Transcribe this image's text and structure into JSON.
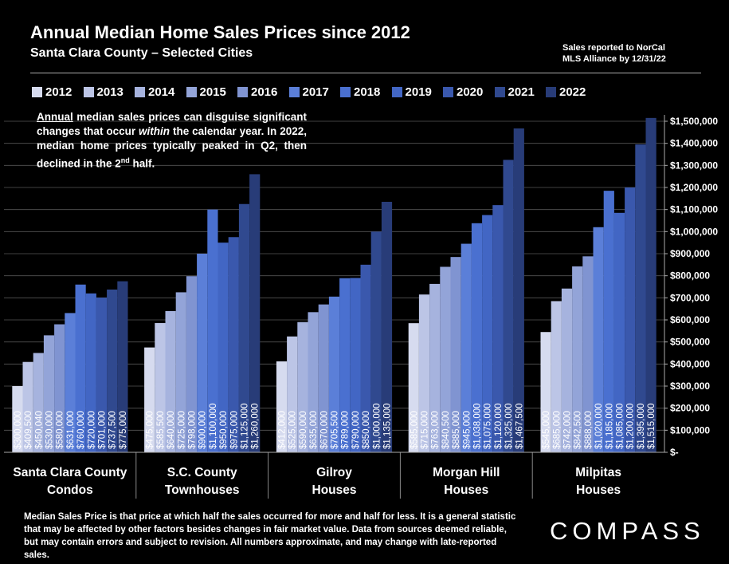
{
  "header": {
    "title": "Annual Median Home Sales Prices since 2012",
    "subtitle": "Santa Clara County – Selected Cities",
    "note_line1": "Sales reported to NorCal",
    "note_line2": "MLS Alliance by 12/31/22"
  },
  "annotation": {
    "word": "Annual",
    "text_a": " median sales prices can disguise significant changes that occur ",
    "em": "within",
    "text_b": " the calendar year. In 2022, median home prices typically peaked in Q2, then declined in the 2",
    "sup": "nd",
    "text_c": " half."
  },
  "footer": {
    "text": "Median Sales Price is that price at which half the sales occurred for more and half for less. It is a general statistic that may be affected by other factors besides changes in fair market value. Data from sources deemed reliable, but may contain errors and subject to revision.  All numbers approximate, and may change with late-reported sales."
  },
  "logo": {
    "text": "COMPASS"
  },
  "chart_data": {
    "type": "bar",
    "years": [
      "2012",
      "2013",
      "2014",
      "2015",
      "2016",
      "2017",
      "2018",
      "2019",
      "2020",
      "2021",
      "2022"
    ],
    "colors": [
      "#d6dbef",
      "#bcc5e6",
      "#a6b3de",
      "#93a4d8",
      "#8094d1",
      "#5b7fd8",
      "#4a70d0",
      "#4266c4",
      "#3a58ad",
      "#30498f",
      "#283c78"
    ],
    "categories": [
      {
        "line1": "Santa Clara County",
        "line2": "Condos"
      },
      {
        "line1": "S.C. County",
        "line2": "Townhouses"
      },
      {
        "line1": "Gilroy",
        "line2": "Houses"
      },
      {
        "line1": "Morgan Hill",
        "line2": "Houses"
      },
      {
        "line1": "Milpitas",
        "line2": "Houses"
      }
    ],
    "values": [
      [
        300000,
        409500,
        450040,
        530000,
        580000,
        631000,
        760000,
        720000,
        701000,
        737500,
        775000
      ],
      [
        475000,
        585500,
        640000,
        725000,
        798000,
        900000,
        1100000,
        950000,
        975000,
        1125000,
        1260000
      ],
      [
        412000,
        525000,
        590000,
        635000,
        670000,
        705500,
        789000,
        790000,
        850000,
        1000000,
        1135000
      ],
      [
        585000,
        715000,
        763000,
        840500,
        885000,
        945000,
        1038000,
        1075000,
        1120000,
        1325000,
        1467500
      ],
      [
        545000,
        685000,
        742000,
        842500,
        888000,
        1020000,
        1185000,
        1085000,
        1200000,
        1395000,
        1515000
      ]
    ],
    "labels": [
      [
        "$300,000",
        "$409,500",
        "$450,040",
        "$530,000",
        "$580,000",
        "$631,000",
        "$760,000",
        "$720,000",
        "$701,000",
        "$737,500",
        "$775,000"
      ],
      [
        "$475,000",
        "$585,500",
        "$640,000",
        "$725,000",
        "$798,000",
        "$900,000",
        "$1,100,000",
        "$950,000",
        "$975,000",
        "$1,125,000",
        "$1,260,000"
      ],
      [
        "$412,000",
        "$525,000",
        "$590,000",
        "$635,000",
        "$670,000",
        "$705,500",
        "$789,000",
        "$790,000",
        "$850,000",
        "$1,000,000",
        "$1,135,000"
      ],
      [
        "$585,000",
        "$715,000",
        "$763,000",
        "$840,500",
        "$885,000",
        "$945,000",
        "$1,038,000",
        "$1,075,000",
        "$1,120,000",
        "$1,325,000",
        "$1,467,500"
      ],
      [
        "$545,000",
        "$685,000",
        "$742,000",
        "$842,500",
        "$888,000",
        "$1,020,000",
        "$1,185,000",
        "$1,085,000",
        "$1,200,000",
        "$1,395,000",
        "$1,515,000"
      ]
    ],
    "y_ticks": [
      {
        "v": 0,
        "label": "$-"
      },
      {
        "v": 100000,
        "label": "$100,000"
      },
      {
        "v": 200000,
        "label": "$200,000"
      },
      {
        "v": 300000,
        "label": "$300,000"
      },
      {
        "v": 400000,
        "label": "$400,000"
      },
      {
        "v": 500000,
        "label": "$500,000"
      },
      {
        "v": 600000,
        "label": "$600,000"
      },
      {
        "v": 700000,
        "label": "$700,000"
      },
      {
        "v": 800000,
        "label": "$800,000"
      },
      {
        "v": 900000,
        "label": "$900,000"
      },
      {
        "v": 1000000,
        "label": "$1,000,000"
      },
      {
        "v": 1100000,
        "label": "$1,100,000"
      },
      {
        "v": 1200000,
        "label": "$1,200,000"
      },
      {
        "v": 1300000,
        "label": "$1,300,000"
      },
      {
        "v": 1400000,
        "label": "$1,400,000"
      },
      {
        "v": 1500000,
        "label": "$1,500,000"
      }
    ],
    "ylim": [
      0,
      1500000
    ],
    "grid": true,
    "legend_position": "top"
  }
}
